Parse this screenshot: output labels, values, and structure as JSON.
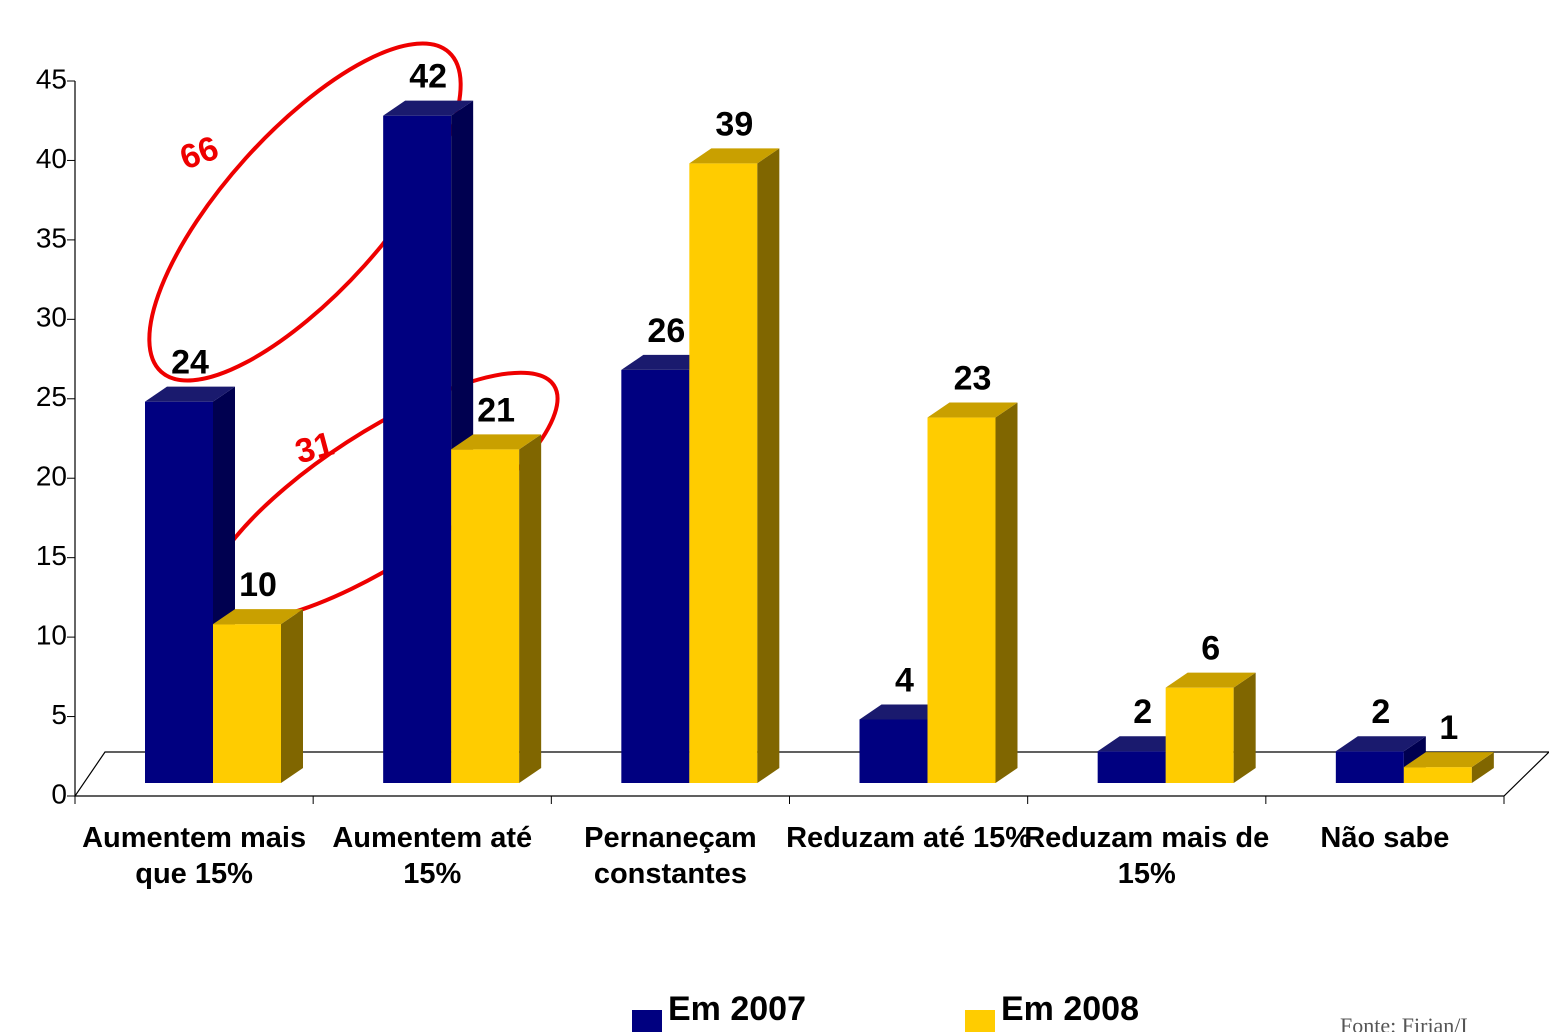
{
  "chart_data": {
    "type": "bar3d",
    "categories": [
      "Aumentem mais que 15%",
      "Aumentem até 15%",
      "Pernaneçam constantes",
      "Reduzam até 15%",
      "Reduzam mais de 15%",
      "Não sabe"
    ],
    "series": [
      {
        "name": "Em 2007",
        "color": "#000080",
        "values": [
          24,
          42,
          26,
          4,
          2,
          2
        ]
      },
      {
        "name": "Em 2008",
        "color": "#ffcc00",
        "values": [
          10,
          21,
          39,
          23,
          6,
          1
        ]
      }
    ],
    "ylim": [
      0,
      45
    ],
    "yticks": [
      0,
      5,
      10,
      15,
      20,
      25,
      30,
      35,
      40,
      45
    ],
    "annotations": [
      "66",
      "31"
    ],
    "source": "Fonte: Firjan/I"
  }
}
